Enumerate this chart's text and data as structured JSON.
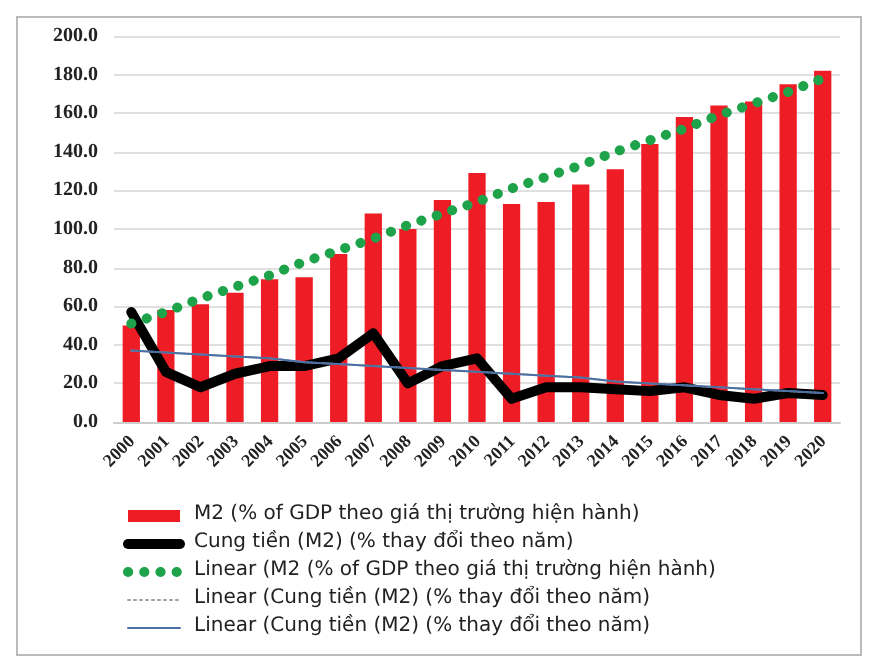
{
  "chart_data": {
    "type": "bar",
    "categories": [
      "2000",
      "2001",
      "2002",
      "2003",
      "2004",
      "2005",
      "2006",
      "2007",
      "2008",
      "2009",
      "2010",
      "2011",
      "2012",
      "2013",
      "2014",
      "2015",
      "2016",
      "2017",
      "2018",
      "2019",
      "2020"
    ],
    "series": [
      {
        "name": "M2 (% of GDP theo giá thị trường hiện hành)",
        "color": "#ee1c25",
        "values": [
          50,
          58,
          61,
          67,
          74,
          75,
          87,
          108,
          100,
          115,
          129,
          113,
          114,
          123,
          131,
          144,
          158,
          164,
          166,
          175,
          182
        ]
      },
      {
        "name": "Cung tiền (M2) (% thay đổi theo năm)",
        "type": "line",
        "color": "#000000",
        "line_style": "solid",
        "values": [
          57,
          26,
          18,
          25,
          29,
          29,
          33,
          46,
          20,
          29,
          33,
          12,
          18,
          18,
          17,
          16,
          18,
          14,
          12,
          15,
          14
        ]
      },
      {
        "name": "Linear (M2 (% of GDP theo giá thị trường hiện hành)",
        "type": "line",
        "color": "#1fa34a",
        "line_style": "dotted",
        "values": [
          51,
          57,
          64,
          70,
          76,
          83,
          89,
          95,
          102,
          108,
          114,
          121,
          127,
          133,
          140,
          146,
          152,
          159,
          165,
          171,
          178
        ]
      },
      {
        "name": "Linear (Cung tiền (M2) (% thay đổi theo năm)",
        "type": "line",
        "color": "#a0a0a0",
        "line_style": "dotted",
        "values": [
          37,
          36,
          35,
          34,
          33,
          31,
          30,
          29,
          28,
          27,
          26,
          25,
          24,
          23,
          21,
          20,
          19,
          18,
          17,
          16,
          15
        ]
      },
      {
        "name": "Linear (Cung tiền (M2) (% thay đổi theo năm)",
        "type": "line",
        "color": "#4a6fa5",
        "line_style": "solid",
        "values": [
          37,
          36,
          35,
          34,
          33,
          31,
          30,
          29,
          28,
          27,
          26,
          25,
          24,
          23,
          21,
          20,
          19,
          18,
          17,
          16,
          15
        ]
      }
    ],
    "ylim": [
      0,
      200
    ],
    "yticks": [
      {
        "value": 0,
        "label": "0.0"
      },
      {
        "value": 20,
        "label": "20.0"
      },
      {
        "value": 40,
        "label": "40.0"
      },
      {
        "value": 60,
        "label": "60.0"
      },
      {
        "value": 80,
        "label": "80.0"
      },
      {
        "value": 100,
        "label": "100.0"
      },
      {
        "value": 120,
        "label": "120.0"
      },
      {
        "value": 140,
        "label": "140.0"
      },
      {
        "value": 160,
        "label": "160.0"
      },
      {
        "value": 180,
        "label": "180.0"
      },
      {
        "value": 200,
        "label": "200.0"
      }
    ],
    "grid": "y",
    "legend": "bottom",
    "marker": "none"
  }
}
